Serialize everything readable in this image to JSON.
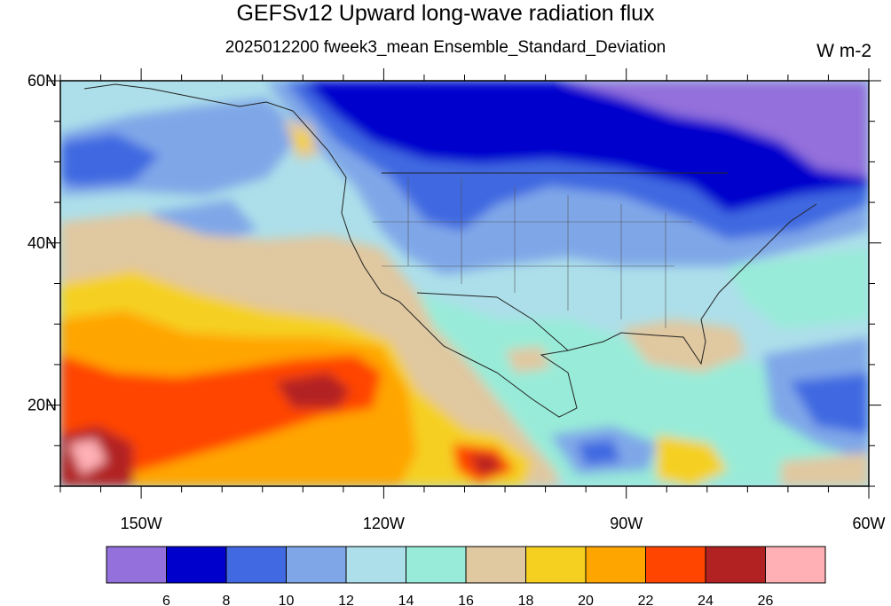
{
  "title": "GEFSv12 Upward long-wave radiation flux",
  "subtitle": "2025012200 fweek3_mean Ensemble_Standard_Deviation",
  "units": "W m-2",
  "map": {
    "lon_range": [
      -160,
      -60
    ],
    "lat_range": [
      10,
      60
    ],
    "lon_labels": [
      {
        "lon": -150,
        "text": "150W"
      },
      {
        "lon": -120,
        "text": "120W"
      },
      {
        "lon": -90,
        "text": "90W"
      },
      {
        "lon": -60,
        "text": "60W"
      }
    ],
    "lat_labels": [
      {
        "lat": 60,
        "text": "60N"
      },
      {
        "lat": 40,
        "text": "40N"
      },
      {
        "lat": 20,
        "text": "20N"
      }
    ]
  },
  "colorbar": {
    "colors": [
      "#9370DB",
      "#0000CD",
      "#4169E1",
      "#7FA7E8",
      "#ADDFEA",
      "#98EBD8",
      "#E0C8A0",
      "#F5D020",
      "#FFA500",
      "#FF4500",
      "#B22222",
      "#FFB0B5"
    ],
    "labels": [
      "6",
      "8",
      "10",
      "12",
      "14",
      "16",
      "18",
      "20",
      "22",
      "24",
      "26"
    ]
  }
}
